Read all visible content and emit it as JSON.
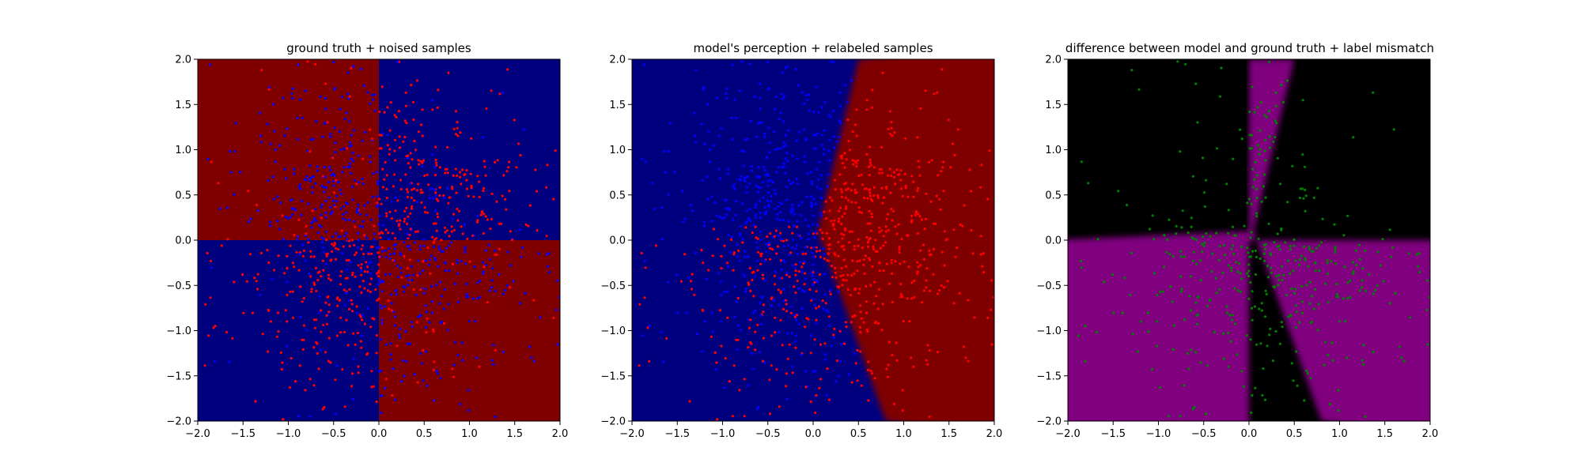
{
  "figure": {
    "background": "#ffffff"
  },
  "colors": {
    "navy": "#00007f",
    "darkred": "#7f0000",
    "blue_point": "#0000ff",
    "red_point": "#ff0000",
    "black": "#000000",
    "purple": "#800080",
    "green_point": "#008000"
  },
  "chart_data": [
    {
      "type": "scatter",
      "title": "ground truth + noised samples",
      "xlabel": "",
      "ylabel": "",
      "xlim": [
        -2.0,
        2.0
      ],
      "ylim": [
        -2.0,
        2.0
      ],
      "xticks": [
        -2.0,
        -1.5,
        -1.0,
        -0.5,
        0.0,
        0.5,
        1.0,
        1.5,
        2.0
      ],
      "yticks": [
        -2.0,
        -1.5,
        -1.0,
        -0.5,
        0.0,
        0.5,
        1.0,
        1.5,
        2.0
      ],
      "background": "quadrant checkerboard: x<0,y>0 dark red; x>0,y>0 navy; x<0,y<0 navy; x>0,y<0 dark red",
      "points": "scatter of ~1200 noisy samples, red and blue, denser toward the center; labels mostly opposite to background color",
      "grid": false
    },
    {
      "type": "scatter",
      "title": "model's perception + relabeled samples",
      "xlabel": "",
      "ylabel": "",
      "xlim": [
        -2.0,
        2.0
      ],
      "ylim": [
        -2.0,
        2.0
      ],
      "xticks": [
        -2.0,
        -1.5,
        -1.0,
        -0.5,
        0.0,
        0.5,
        1.0,
        1.5,
        2.0
      ],
      "yticks": [
        -2.0,
        -1.5,
        -1.0,
        -0.5,
        0.0,
        0.5,
        1.0,
        1.5,
        2.0
      ],
      "decision_boundary": [
        [
          0.5,
          2.0
        ],
        [
          0.05,
          0.1
        ],
        [
          0.8,
          -2.0
        ]
      ],
      "background": "left of boundary navy, right of boundary dark red, blurred edge",
      "points": "samples relabeled by model: blue left of boundary (upper), red to the right and lower-left region",
      "grid": false
    },
    {
      "type": "scatter",
      "title": "difference between model and ground truth + label mismatch",
      "xlabel": "",
      "ylabel": "",
      "xlim": [
        -2.0,
        2.0
      ],
      "ylim": [
        -2.0,
        2.0
      ],
      "xticks": [
        -2.0,
        -1.5,
        -1.0,
        -0.5,
        0.0,
        0.5,
        1.0,
        1.5,
        2.0
      ],
      "yticks": [
        -2.0,
        -1.5,
        -1.0,
        -0.5,
        0.0,
        0.5,
        1.0,
        1.5,
        2.0
      ],
      "background": "black where model agrees with ground truth, purple where they differ",
      "points": "green points marking label mismatches",
      "grid": false
    }
  ]
}
